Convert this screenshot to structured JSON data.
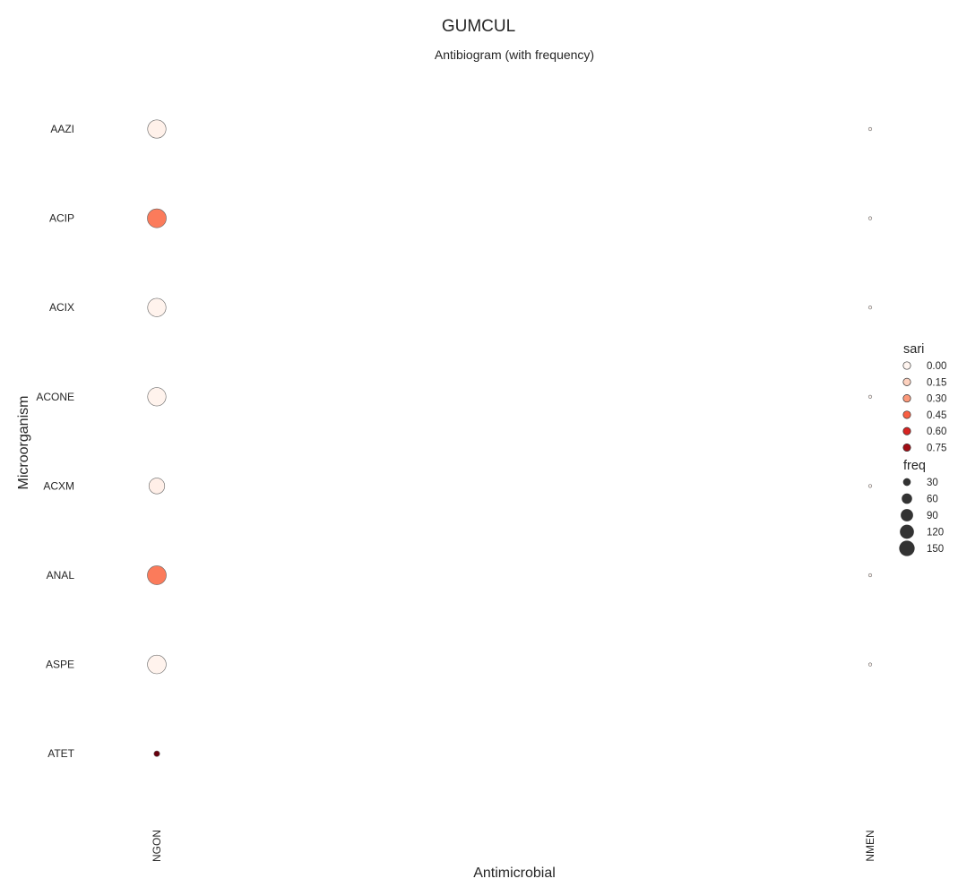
{
  "chart_data": {
    "type": "scatter",
    "suptitle": "GUMCUL",
    "title": "Antibiogram (with frequency)",
    "xlabel": "Antimicrobial",
    "ylabel": "Microorganism",
    "x_categories": [
      "NGON",
      "NMEN"
    ],
    "y_categories": [
      "AAZI",
      "ACIP",
      "ACIX",
      "ACONE",
      "ACXM",
      "ANAL",
      "ASPE",
      "ATET"
    ],
    "colormap": "Reds",
    "grid": false,
    "legend_position": "right",
    "points": [
      {
        "x": "NGON",
        "y": "AAZI",
        "sari": 0.02,
        "freq": 140
      },
      {
        "x": "NGON",
        "y": "ACIP",
        "sari": 0.38,
        "freq": 150
      },
      {
        "x": "NGON",
        "y": "ACIX",
        "sari": 0.01,
        "freq": 140
      },
      {
        "x": "NGON",
        "y": "ACONE",
        "sari": 0.01,
        "freq": 140
      },
      {
        "x": "NGON",
        "y": "ACXM",
        "sari": 0.03,
        "freq": 100
      },
      {
        "x": "NGON",
        "y": "ANAL",
        "sari": 0.38,
        "freq": 150
      },
      {
        "x": "NGON",
        "y": "ASPE",
        "sari": 0.01,
        "freq": 145
      },
      {
        "x": "NGON",
        "y": "ATET",
        "sari": 0.85,
        "freq": 8
      },
      {
        "x": "NMEN",
        "y": "AAZI",
        "sari": 0.0,
        "freq": 1
      },
      {
        "x": "NMEN",
        "y": "ACIP",
        "sari": 0.0,
        "freq": 1
      },
      {
        "x": "NMEN",
        "y": "ACIX",
        "sari": 0.0,
        "freq": 1
      },
      {
        "x": "NMEN",
        "y": "ACONE",
        "sari": 0.0,
        "freq": 1
      },
      {
        "x": "NMEN",
        "y": "ACXM",
        "sari": 0.0,
        "freq": 1
      },
      {
        "x": "NMEN",
        "y": "ANAL",
        "sari": 0.0,
        "freq": 1
      },
      {
        "x": "NMEN",
        "y": "ASPE",
        "sari": 0.0,
        "freq": 1
      }
    ],
    "legend": {
      "hue_title": "sari",
      "hue_entries": [
        {
          "label": "0.00",
          "value": 0.0
        },
        {
          "label": "0.15",
          "value": 0.15
        },
        {
          "label": "0.30",
          "value": 0.3
        },
        {
          "label": "0.45",
          "value": 0.45
        },
        {
          "label": "0.60",
          "value": 0.6
        },
        {
          "label": "0.75",
          "value": 0.75
        }
      ],
      "size_title": "freq",
      "size_entries": [
        {
          "label": "30",
          "value": 30
        },
        {
          "label": "60",
          "value": 60
        },
        {
          "label": "90",
          "value": 90
        },
        {
          "label": "120",
          "value": 120
        },
        {
          "label": "150",
          "value": 150
        }
      ]
    },
    "colors": {
      "point_edge": "#666666",
      "legend_size_marker": "#333333"
    }
  }
}
